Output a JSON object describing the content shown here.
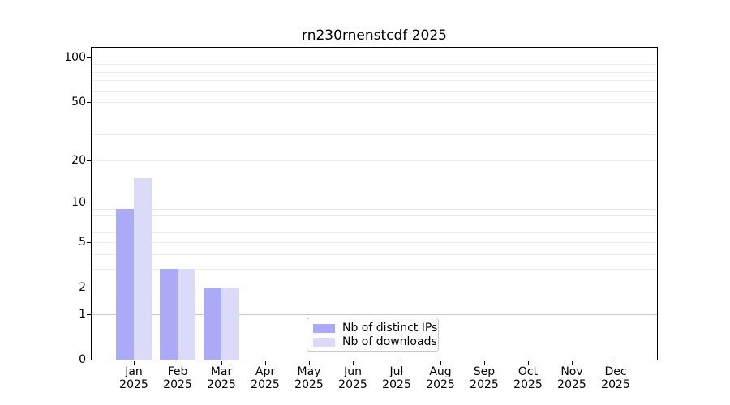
{
  "title": "rn230rnenstcdf 2025",
  "chart_data": {
    "type": "bar",
    "title": "rn230rnenstcdf 2025",
    "categories": [
      "Jan 2025",
      "Feb 2025",
      "Mar 2025",
      "Apr 2025",
      "May 2025",
      "Jun 2025",
      "Jul 2025",
      "Aug 2025",
      "Sep 2025",
      "Oct 2025",
      "Nov 2025",
      "Dec 2025"
    ],
    "series": [
      {
        "name": "Nb of distinct IPs",
        "color": "#aaaaf6",
        "values": [
          9,
          3,
          2,
          0,
          0,
          0,
          0,
          0,
          0,
          0,
          0,
          0
        ]
      },
      {
        "name": "Nb of downloads",
        "color": "#dbdbf9",
        "values": [
          15,
          3,
          2,
          0,
          0,
          0,
          0,
          0,
          0,
          0,
          0,
          0
        ]
      }
    ],
    "y_axis": {
      "scale": "log1p",
      "tick_values": [
        0,
        1,
        2,
        5,
        10,
        20,
        50,
        100
      ],
      "tick_labels": [
        "0",
        "1",
        "2",
        "5",
        "10",
        "20",
        "50",
        "100"
      ],
      "major_gridlines": [
        1,
        10,
        100
      ],
      "minor_gridlines": [
        2,
        3,
        4,
        5,
        6,
        7,
        8,
        9,
        20,
        30,
        40,
        50,
        60,
        70,
        80,
        90
      ]
    },
    "legend_position": "lower center",
    "grid": true
  },
  "colors": {
    "series_ips": "#aaaaf6",
    "series_downloads": "#dbdbf9",
    "major_grid": "#c8c8c8",
    "minor_grid": "#ececec",
    "axis": "#000000",
    "background": "#ffffff"
  }
}
